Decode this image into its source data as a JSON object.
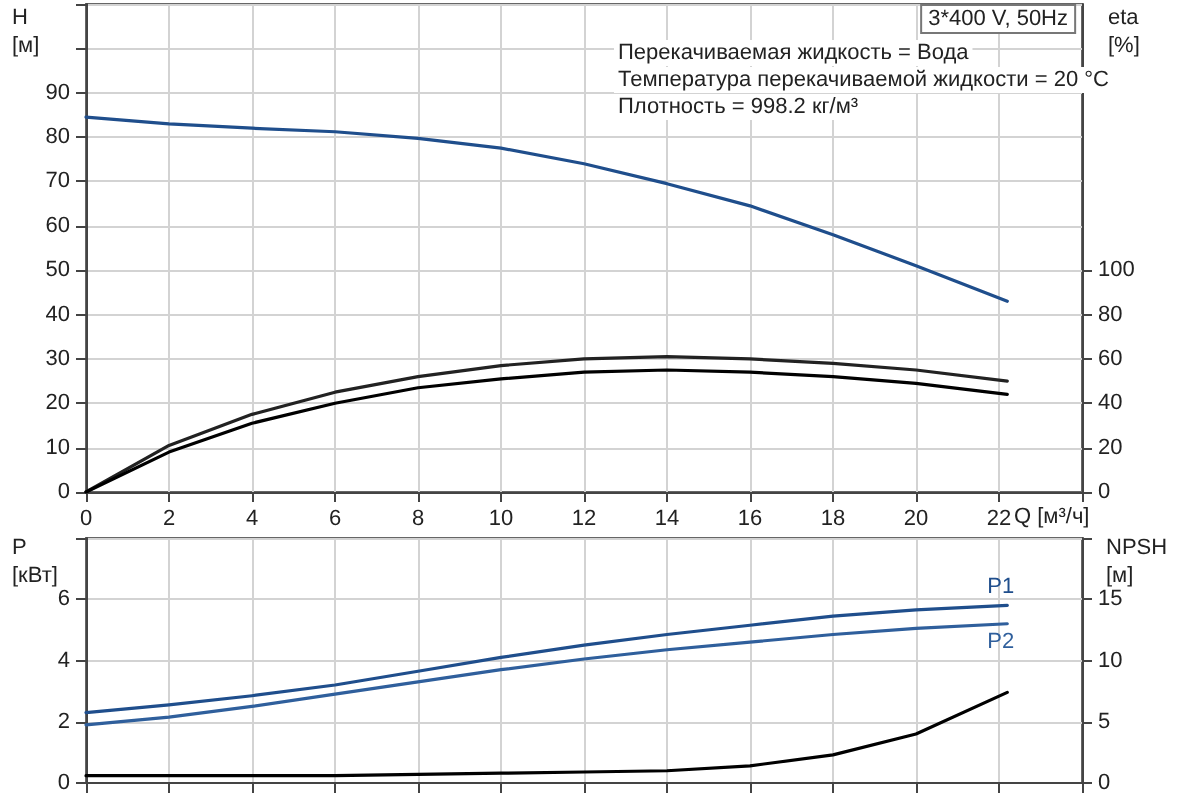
{
  "chart_data": [
    {
      "type": "line",
      "title": "3*400 V, 50Hz",
      "xlabel": "Q [м³/ч]",
      "ylabel": "H [м]",
      "y2label": "eta [%]",
      "annotations": [
        "Перекачиваемая жидкость = Вода",
        "Температура перекачиваемой жидкости = 20 °C",
        "Плотность = 998.2 кг/м³"
      ],
      "x": [
        0,
        2,
        4,
        6,
        8,
        10,
        12,
        14,
        16,
        18,
        20,
        22.2
      ],
      "series": [
        {
          "color": "#1f4e8c",
          "values": [
            84.5,
            83,
            82,
            81.2,
            79.7,
            77.5,
            74,
            69.5,
            64.5,
            58,
            51,
            43
          ]
        },
        {
          "color": "#222222",
          "axis": "y2",
          "values": [
            0,
            21,
            35,
            45,
            52,
            57,
            60,
            61,
            60,
            58,
            55,
            50
          ]
        },
        {
          "color": "#000000",
          "axis": "y2",
          "values": [
            0,
            18,
            31,
            40,
            47,
            51,
            54,
            55,
            54,
            52,
            49,
            44
          ]
        }
      ],
      "xlim": [
        0,
        24
      ],
      "xticks": [
        0,
        2,
        4,
        6,
        8,
        10,
        12,
        14,
        16,
        18,
        20,
        22,
        {
          "value": 24,
          "label": null
        }
      ],
      "ylim": [
        0,
        110
      ],
      "yticks": [
        0,
        10,
        20,
        30,
        40,
        50,
        60,
        70,
        80,
        90,
        {
          "value": 100,
          "label": null
        },
        {
          "value": 110,
          "label": null
        }
      ],
      "y2lim": [
        0,
        220
      ],
      "y2ticks": [
        0,
        20,
        40,
        60,
        80,
        100
      ],
      "grid": true,
      "legend": false,
      "marker": "none",
      "line_style": "solid"
    },
    {
      "type": "line",
      "ylabel": "P [кВт]",
      "y2label": "NPSH [м]",
      "x": [
        0,
        2,
        4,
        6,
        8,
        10,
        12,
        14,
        16,
        18,
        20,
        22.2
      ],
      "series": [
        {
          "name": "P1",
          "color": "#1f4e8c",
          "values": [
            2.3,
            2.55,
            2.85,
            3.2,
            3.65,
            4.1,
            4.5,
            4.85,
            5.15,
            5.45,
            5.65,
            5.8
          ]
        },
        {
          "name": "P2",
          "color": "#2f5f9c",
          "values": [
            1.9,
            2.15,
            2.5,
            2.9,
            3.3,
            3.7,
            4.05,
            4.35,
            4.6,
            4.85,
            5.05,
            5.2
          ]
        },
        {
          "color": "#000000",
          "axis": "y2",
          "values": [
            0.6,
            0.6,
            0.6,
            0.6,
            0.7,
            0.8,
            0.9,
            1,
            1.4,
            2.3,
            4,
            7.4
          ]
        }
      ],
      "xlim": [
        0,
        24
      ],
      "xticks": [
        0,
        2,
        4,
        6,
        8,
        10,
        12,
        14,
        16,
        18,
        20,
        22,
        24
      ],
      "ylim": [
        0,
        8
      ],
      "yticks": [
        0,
        2,
        4,
        6,
        {
          "value": 8,
          "label": null
        }
      ],
      "y2lim": [
        0,
        20
      ],
      "y2ticks": [
        0,
        5,
        10,
        15,
        {
          "value": 20,
          "label": null
        }
      ],
      "tick_labels": "y",
      "grid": true,
      "legend": false,
      "marker": "none",
      "line_style": "solid"
    }
  ]
}
